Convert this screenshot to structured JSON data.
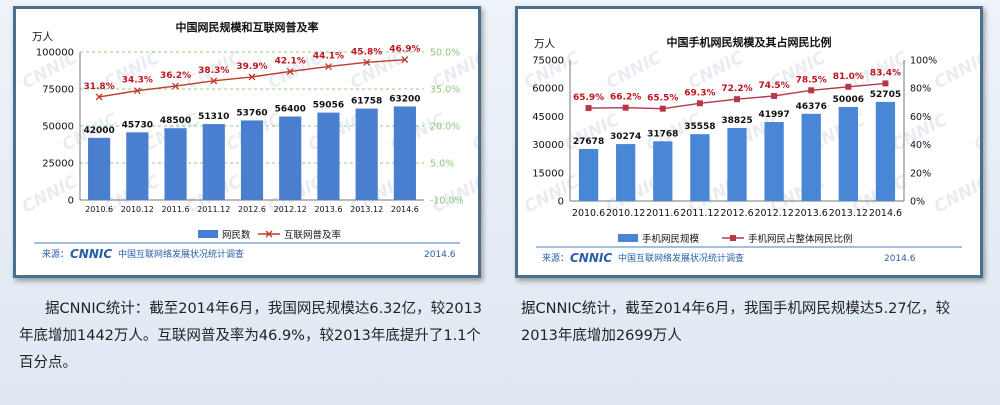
{
  "left": {
    "title": "中国网民规模和互联网普及率",
    "unit": "万人",
    "watermark": "CNNIC",
    "source_prefix": "来源：",
    "source_logo": "CNNIC",
    "source_org": "中国互联网络发展状况统计调查",
    "date": "2014.6",
    "caption": "据CNNIC统计：截至2014年6月，我国网民规模达6.32亿，较2013年底增加1442万人。互联网普及率为46.9%，较2013年底提升了1.1个百分点。"
  },
  "right": {
    "title": "中国手机网民规模及其占网民比例",
    "unit": "万人",
    "watermark": "CNNIC",
    "source_prefix": "来源：",
    "source_logo": "CNNIC",
    "source_org": "中国互联网络发展状况统计调查",
    "date": "2014.6",
    "caption": "据CNNIC统计，截至2014年6月，我国手机网民规模达5.27亿，较2013年底增加2699万人"
  },
  "colors": {
    "bar_left": "#4a7fcf",
    "bar_right": "#4a86d6",
    "line_left": "#c0392b",
    "line_right": "#b7364a",
    "pct_label": "#c0151f",
    "right_axis_left": "#8cc97a",
    "grid_left": "#8fd07a",
    "brand": "#2a5da8"
  },
  "chart_data": [
    {
      "type": "bar",
      "title": "中国网民规模和互联网普及率",
      "ylabel": "万人",
      "categories": [
        "2010.6",
        "2010.12",
        "2011.6",
        "2011.12",
        "2012.6",
        "2012.12",
        "2013.6",
        "2013.12",
        "2014.6"
      ],
      "y_ticks": [
        "0",
        "25000",
        "50000",
        "75000",
        "100000"
      ],
      "y2_ticks": [
        "-10.0%",
        "5.0%",
        "20.0%",
        "35.0%",
        "50.0%"
      ],
      "ylim": [
        0,
        100000
      ],
      "y2lim": [
        -10,
        50
      ],
      "legend_position": "bottom",
      "series": [
        {
          "name": "网民数",
          "kind": "bar",
          "axis": "left",
          "values": [
            42000,
            45730,
            48500,
            51310,
            53760,
            56400,
            59056,
            61758,
            63200
          ],
          "labels": [
            "42000",
            "45730",
            "48500",
            "51310",
            "53760",
            "56400",
            "59056",
            "61758",
            "63200"
          ]
        },
        {
          "name": "互联网普及率",
          "kind": "line",
          "axis": "right",
          "values": [
            31.8,
            34.3,
            36.2,
            38.3,
            39.9,
            42.1,
            44.1,
            45.8,
            46.9
          ],
          "labels": [
            "31.8%",
            "34.3%",
            "36.2%",
            "38.3%",
            "39.9%",
            "42.1%",
            "44.1%",
            "45.8%",
            "46.9%"
          ]
        }
      ]
    },
    {
      "type": "bar",
      "title": "中国手机网民规模及其占网民比例",
      "ylabel": "万人",
      "categories": [
        "2010.6",
        "2010.12",
        "2011.6",
        "2011.12",
        "2012.6",
        "2012.12",
        "2013.6",
        "2013.12",
        "2014.6"
      ],
      "y_ticks": [
        "0",
        "15000",
        "30000",
        "45000",
        "60000",
        "75000"
      ],
      "y2_ticks": [
        "0%",
        "20%",
        "40%",
        "60%",
        "80%",
        "100%"
      ],
      "ylim": [
        0,
        75000
      ],
      "y2lim": [
        0,
        100
      ],
      "legend_position": "bottom",
      "series": [
        {
          "name": "手机网民规模",
          "kind": "bar",
          "axis": "left",
          "values": [
            27678,
            30274,
            31768,
            35558,
            38825,
            41997,
            46376,
            50006,
            52705
          ],
          "labels": [
            "27678",
            "30274",
            "31768",
            "35558",
            "38825",
            "41997",
            "46376",
            "50006",
            "52705"
          ]
        },
        {
          "name": "手机网民占整体网民比例",
          "kind": "line",
          "axis": "right",
          "values": [
            65.9,
            66.2,
            65.5,
            69.3,
            72.2,
            74.5,
            78.5,
            81.0,
            83.4
          ],
          "labels": [
            "65.9%",
            "66.2%",
            "65.5%",
            "69.3%",
            "72.2%",
            "74.5%",
            "78.5%",
            "81.0%",
            "83.4%"
          ]
        }
      ]
    }
  ]
}
